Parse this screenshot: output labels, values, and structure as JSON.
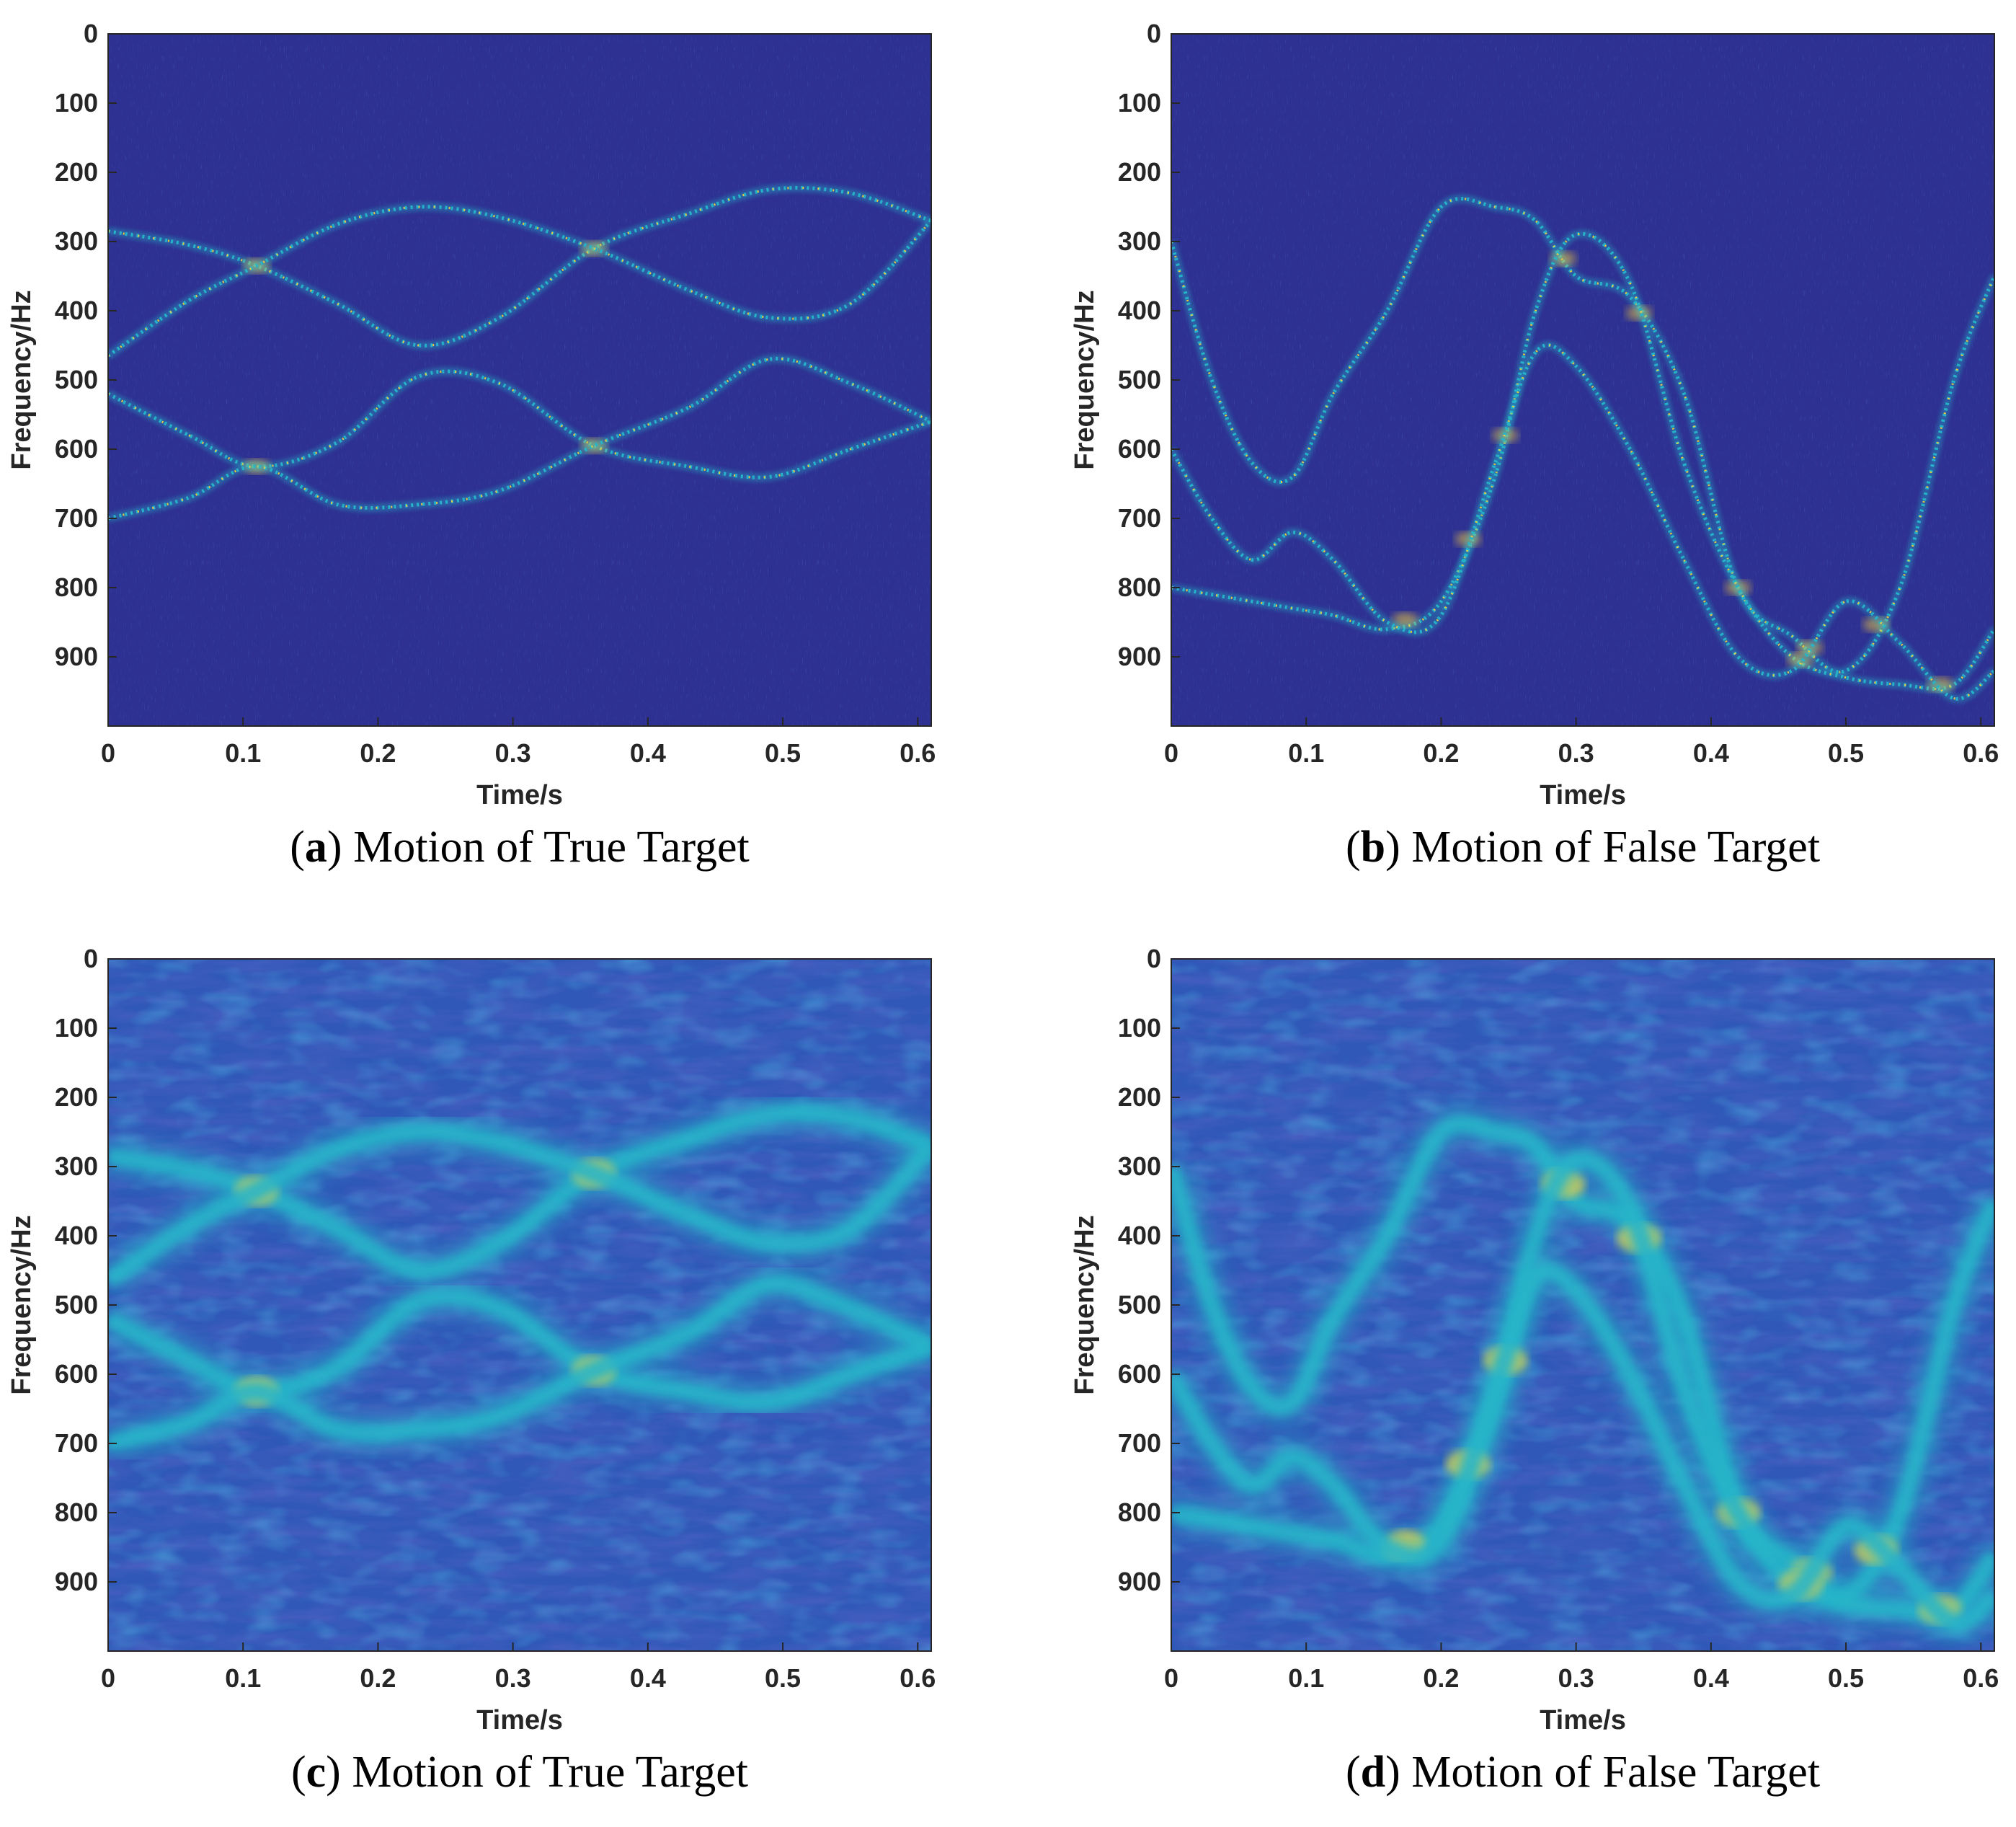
{
  "colors": {
    "background_sparse": "#2e3192",
    "background_smooth": "#2f58b8",
    "ridge_mid": "#25b5c9",
    "ridge_peak": "#f9d33a",
    "axis": "#262626"
  },
  "chart_data": [
    {
      "type": "heatmap",
      "panel": "a",
      "caption_letter": "a",
      "caption_text": " Motion of True Target",
      "xlabel": "Time/s",
      "ylabel": "Frequency/Hz",
      "xlim": [
        0,
        0.61
      ],
      "ylim": [
        1000,
        0
      ],
      "xticks": [
        "0",
        "0.1",
        "0.2",
        "0.3",
        "0.4",
        "0.5",
        "0.6"
      ],
      "yticks": [
        "0",
        "100",
        "200",
        "300",
        "400",
        "500",
        "600",
        "700",
        "800",
        "900"
      ],
      "style": "sparse",
      "series": [
        {
          "x": [
            0,
            0.06,
            0.11,
            0.17,
            0.23,
            0.29,
            0.36,
            0.43,
            0.49,
            0.55,
            0.61
          ],
          "y": [
            285,
            305,
            335,
            390,
            450,
            410,
            310,
            260,
            225,
            230,
            270
          ]
        },
        {
          "x": [
            0,
            0.06,
            0.11,
            0.17,
            0.23,
            0.29,
            0.36,
            0.43,
            0.49,
            0.55,
            0.61
          ],
          "y": [
            465,
            385,
            335,
            275,
            250,
            265,
            310,
            370,
            410,
            390,
            270
          ]
        },
        {
          "x": [
            0,
            0.06,
            0.11,
            0.17,
            0.23,
            0.29,
            0.36,
            0.43,
            0.49,
            0.55,
            0.61
          ],
          "y": [
            520,
            580,
            625,
            590,
            495,
            505,
            595,
            625,
            640,
            600,
            560
          ]
        },
        {
          "x": [
            0,
            0.06,
            0.11,
            0.17,
            0.23,
            0.29,
            0.36,
            0.43,
            0.49,
            0.55,
            0.61
          ],
          "y": [
            700,
            670,
            625,
            680,
            680,
            660,
            595,
            540,
            470,
            505,
            560
          ]
        }
      ]
    },
    {
      "type": "heatmap",
      "panel": "b",
      "caption_letter": "b",
      "caption_text": " Motion of False Target",
      "xlabel": "Time/s",
      "ylabel": "Frequency/Hz",
      "xlim": [
        0,
        0.61
      ],
      "ylim": [
        1000,
        0
      ],
      "xticks": [
        "0",
        "0.1",
        "0.2",
        "0.3",
        "0.4",
        "0.5",
        "0.6"
      ],
      "yticks": [
        "0",
        "100",
        "200",
        "300",
        "400",
        "500",
        "600",
        "700",
        "800",
        "900"
      ],
      "style": "sparse",
      "series": [
        {
          "x": [
            0,
            0.03,
            0.06,
            0.09,
            0.12,
            0.16,
            0.2,
            0.24,
            0.27,
            0.3,
            0.34,
            0.38,
            0.42,
            0.46,
            0.5,
            0.54,
            0.58,
            0.61
          ],
          "y": [
            300,
            500,
            620,
            640,
            520,
            400,
            250,
            250,
            270,
            350,
            380,
            520,
            800,
            870,
            920,
            800,
            500,
            350
          ]
        },
        {
          "x": [
            0,
            0.03,
            0.06,
            0.09,
            0.12,
            0.16,
            0.2,
            0.24,
            0.27,
            0.3,
            0.34,
            0.38,
            0.42,
            0.46,
            0.5,
            0.54,
            0.58,
            0.61
          ],
          "y": [
            800,
            810,
            820,
            830,
            840,
            860,
            820,
            640,
            400,
            290,
            360,
            620,
            800,
            900,
            930,
            940,
            940,
            860
          ]
        },
        {
          "x": [
            0,
            0.03,
            0.06,
            0.09,
            0.12,
            0.16,
            0.2,
            0.24,
            0.27,
            0.3,
            0.34,
            0.38,
            0.42,
            0.46,
            0.5,
            0.54,
            0.58,
            0.61
          ],
          "y": [
            600,
            700,
            760,
            720,
            760,
            850,
            840,
            620,
            460,
            480,
            600,
            760,
            900,
            920,
            820,
            880,
            960,
            920
          ]
        }
      ]
    },
    {
      "type": "heatmap",
      "panel": "c",
      "caption_letter": "c",
      "caption_text": " Motion of True Target",
      "xlabel": "Time/s",
      "ylabel": "Frequency/Hz",
      "xlim": [
        0,
        0.61
      ],
      "ylim": [
        1000,
        0
      ],
      "xticks": [
        "0",
        "0.1",
        "0.2",
        "0.3",
        "0.4",
        "0.5",
        "0.6"
      ],
      "yticks": [
        "0",
        "100",
        "200",
        "300",
        "400",
        "500",
        "600",
        "700",
        "800",
        "900"
      ],
      "style": "smooth",
      "series": [
        {
          "x": [
            0,
            0.06,
            0.11,
            0.17,
            0.23,
            0.29,
            0.36,
            0.43,
            0.49,
            0.55,
            0.61
          ],
          "y": [
            285,
            305,
            335,
            390,
            450,
            410,
            310,
            260,
            225,
            230,
            270
          ]
        },
        {
          "x": [
            0,
            0.06,
            0.11,
            0.17,
            0.23,
            0.29,
            0.36,
            0.43,
            0.49,
            0.55,
            0.61
          ],
          "y": [
            465,
            385,
            335,
            275,
            250,
            265,
            310,
            370,
            410,
            390,
            270
          ]
        },
        {
          "x": [
            0,
            0.06,
            0.11,
            0.17,
            0.23,
            0.29,
            0.36,
            0.43,
            0.49,
            0.55,
            0.61
          ],
          "y": [
            520,
            580,
            625,
            590,
            495,
            505,
            595,
            625,
            640,
            600,
            560
          ]
        },
        {
          "x": [
            0,
            0.06,
            0.11,
            0.17,
            0.23,
            0.29,
            0.36,
            0.43,
            0.49,
            0.55,
            0.61
          ],
          "y": [
            700,
            670,
            625,
            680,
            680,
            660,
            595,
            540,
            470,
            505,
            560
          ]
        }
      ]
    },
    {
      "type": "heatmap",
      "panel": "d",
      "caption_letter": "d",
      "caption_text": " Motion of False Target",
      "xlabel": "Time/s",
      "ylabel": "Frequency/Hz",
      "xlim": [
        0,
        0.61
      ],
      "ylim": [
        1000,
        0
      ],
      "xticks": [
        "0",
        "0.1",
        "0.2",
        "0.3",
        "0.4",
        "0.5",
        "0.6"
      ],
      "yticks": [
        "0",
        "100",
        "200",
        "300",
        "400",
        "500",
        "600",
        "700",
        "800",
        "900"
      ],
      "style": "smooth",
      "series": [
        {
          "x": [
            0,
            0.03,
            0.06,
            0.09,
            0.12,
            0.16,
            0.2,
            0.24,
            0.27,
            0.3,
            0.34,
            0.38,
            0.42,
            0.46,
            0.5,
            0.54,
            0.58,
            0.61
          ],
          "y": [
            300,
            500,
            620,
            640,
            520,
            400,
            250,
            250,
            270,
            350,
            380,
            520,
            800,
            870,
            920,
            800,
            500,
            350
          ]
        },
        {
          "x": [
            0,
            0.03,
            0.06,
            0.09,
            0.12,
            0.16,
            0.2,
            0.24,
            0.27,
            0.3,
            0.34,
            0.38,
            0.42,
            0.46,
            0.5,
            0.54,
            0.58,
            0.61
          ],
          "y": [
            800,
            810,
            820,
            830,
            840,
            860,
            820,
            640,
            400,
            290,
            360,
            620,
            800,
            900,
            930,
            940,
            940,
            860
          ]
        },
        {
          "x": [
            0,
            0.03,
            0.06,
            0.09,
            0.12,
            0.16,
            0.2,
            0.24,
            0.27,
            0.3,
            0.34,
            0.38,
            0.42,
            0.46,
            0.5,
            0.54,
            0.58,
            0.61
          ],
          "y": [
            600,
            700,
            760,
            720,
            760,
            850,
            840,
            620,
            460,
            480,
            600,
            760,
            900,
            920,
            820,
            880,
            960,
            920
          ]
        }
      ]
    }
  ]
}
